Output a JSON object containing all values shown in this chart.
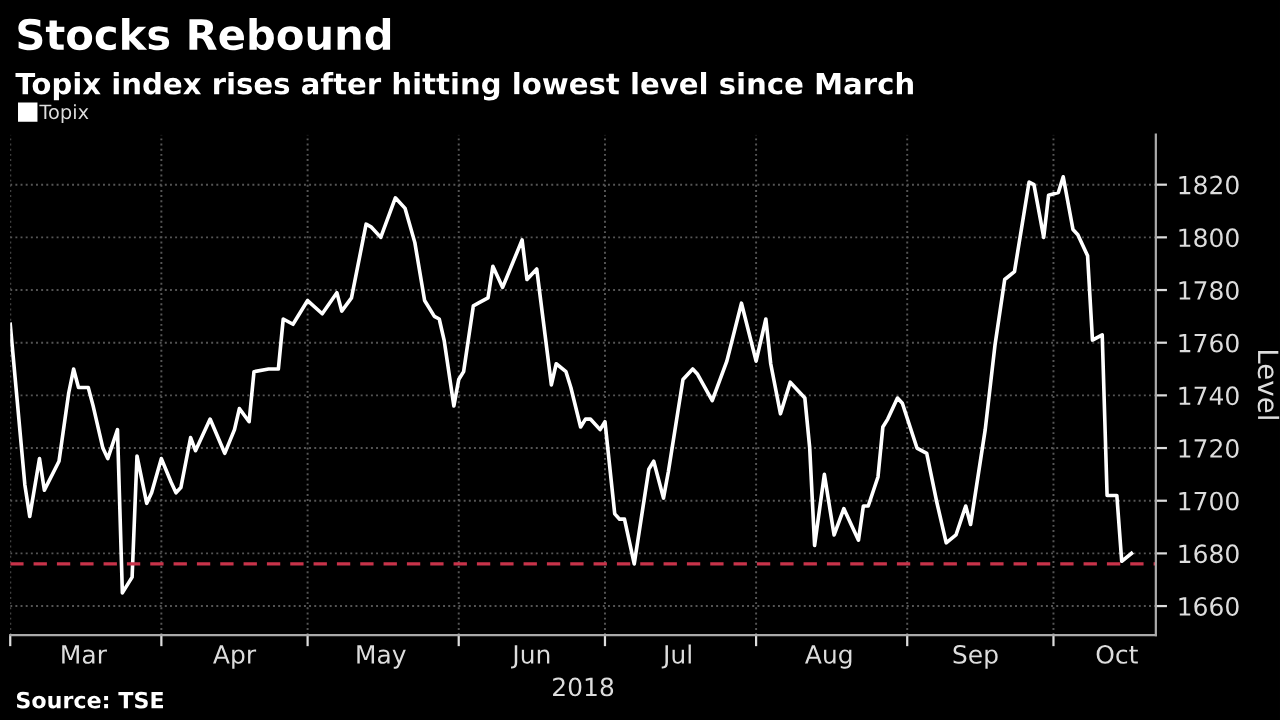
{
  "chart_data": {
    "type": "line",
    "title": "Stocks Rebound",
    "subtitle": "Topix index rises after hitting lowest level since March",
    "xlabel": "2018",
    "ylabel": "Level",
    "annotations": [
      "Source: TSE"
    ],
    "x": [
      "2018-03-01",
      "2018-03-04",
      "2018-03-05",
      "2018-03-07",
      "2018-03-08",
      "2018-03-11",
      "2018-03-13",
      "2018-03-14",
      "2018-03-15",
      "2018-03-17",
      "2018-03-18",
      "2018-03-20",
      "2018-03-21",
      "2018-03-23",
      "2018-03-24",
      "2018-03-26",
      "2018-03-27",
      "2018-03-29",
      "2018-03-30",
      "2018-04-01",
      "2018-04-03",
      "2018-04-04",
      "2018-04-05",
      "2018-04-07",
      "2018-04-08",
      "2018-04-11",
      "2018-04-14",
      "2018-04-16",
      "2018-04-17",
      "2018-04-19",
      "2018-04-20",
      "2018-04-23",
      "2018-04-25",
      "2018-04-26",
      "2018-04-28",
      "2018-05-01",
      "2018-05-04",
      "2018-05-07",
      "2018-05-08",
      "2018-05-10",
      "2018-05-13",
      "2018-05-14",
      "2018-05-16",
      "2018-05-19",
      "2018-05-21",
      "2018-05-23",
      "2018-05-25",
      "2018-05-27",
      "2018-05-28",
      "2018-05-29",
      "2018-05-31",
      "2018-06-01",
      "2018-06-02",
      "2018-06-04",
      "2018-06-05",
      "2018-06-07",
      "2018-06-08",
      "2018-06-10",
      "2018-06-14",
      "2018-06-15",
      "2018-06-17",
      "2018-06-20",
      "2018-06-21",
      "2018-06-23",
      "2018-06-24",
      "2018-06-26",
      "2018-06-27",
      "2018-06-28",
      "2018-06-30",
      "2018-07-01",
      "2018-07-03",
      "2018-07-04",
      "2018-07-05",
      "2018-07-07",
      "2018-07-10",
      "2018-07-11",
      "2018-07-13",
      "2018-07-14",
      "2018-07-17",
      "2018-07-19",
      "2018-07-20",
      "2018-07-23",
      "2018-07-26",
      "2018-07-29",
      "2018-08-01",
      "2018-08-03",
      "2018-08-04",
      "2018-08-06",
      "2018-08-08",
      "2018-08-09",
      "2018-08-11",
      "2018-08-12",
      "2018-08-13",
      "2018-08-15",
      "2018-08-17",
      "2018-08-19",
      "2018-08-22",
      "2018-08-23",
      "2018-08-24",
      "2018-08-26",
      "2018-08-27",
      "2018-08-28",
      "2018-08-30",
      "2018-08-31",
      "2018-09-03",
      "2018-09-05",
      "2018-09-07",
      "2018-09-09",
      "2018-09-11",
      "2018-09-13",
      "2018-09-14",
      "2018-09-17",
      "2018-09-19",
      "2018-09-21",
      "2018-09-23",
      "2018-09-26",
      "2018-09-27",
      "2018-09-29",
      "2018-09-30",
      "2018-10-02",
      "2018-10-03",
      "2018-10-05",
      "2018-10-06",
      "2018-10-08",
      "2018-10-09",
      "2018-10-11",
      "2018-10-12",
      "2018-10-14",
      "2018-10-15",
      "2018-10-17"
    ],
    "series": [
      {
        "name": "Topix",
        "color": "#ffffff",
        "values": [
          1767,
          1706,
          1694,
          1716,
          1704,
          1715,
          1741,
          1750,
          1743,
          1743,
          1736,
          1720,
          1716,
          1727,
          1665,
          1671,
          1717,
          1699,
          1703,
          1716,
          1707,
          1703,
          1705,
          1724,
          1719,
          1731,
          1718,
          1727,
          1735,
          1730,
          1749,
          1750,
          1750,
          1769,
          1767,
          1776,
          1771,
          1779,
          1772,
          1777,
          1805,
          1804,
          1800,
          1815,
          1811,
          1798,
          1776,
          1770,
          1769,
          1761,
          1736,
          1746,
          1749,
          1774,
          1775,
          1777,
          1789,
          1781,
          1799,
          1784,
          1788,
          1744,
          1752,
          1749,
          1743,
          1728,
          1731,
          1731,
          1727,
          1730,
          1695,
          1693,
          1693,
          1676,
          1712,
          1715,
          1701,
          1711,
          1746,
          1750,
          1748,
          1738,
          1753,
          1775,
          1753,
          1769,
          1752,
          1733,
          1745,
          1743,
          1739,
          1720,
          1683,
          1710,
          1687,
          1697,
          1685,
          1698,
          1698,
          1709,
          1728,
          1731,
          1739,
          1737,
          1720,
          1718,
          1700,
          1684,
          1687,
          1698,
          1691,
          1727,
          1759,
          1784,
          1787,
          1821,
          1820,
          1800,
          1816,
          1817,
          1823,
          1803,
          1801,
          1793,
          1761,
          1763,
          1702,
          1702,
          1677,
          1680
        ]
      }
    ],
    "xlim": [
      "2018-03-01",
      "2018-10-22"
    ],
    "xticks": [
      {
        "value": "2018-03-01",
        "label": null
      },
      {
        "value": "2018-04-01",
        "label": null
      },
      {
        "value": "2018-05-01",
        "label": null
      },
      {
        "value": "2018-06-01",
        "label": null
      },
      {
        "value": "2018-07-01",
        "label": null
      },
      {
        "value": "2018-08-01",
        "label": null
      },
      {
        "value": "2018-09-01",
        "label": null
      },
      {
        "value": "2018-10-01",
        "label": null
      },
      {
        "value": "2018-03-16",
        "label": "Mar"
      },
      {
        "value": "2018-04-16",
        "label": "Apr"
      },
      {
        "value": "2018-05-16",
        "label": "May"
      },
      {
        "value": "2018-06-16",
        "label": "Jun"
      },
      {
        "value": "2018-07-16",
        "label": "Jul"
      },
      {
        "value": "2018-08-16",
        "label": "Aug"
      },
      {
        "value": "2018-09-15",
        "label": "Sep"
      },
      {
        "value": "2018-10-14",
        "label": "Oct"
      }
    ],
    "ylim": [
      1649,
      1839
    ],
    "yticks": [
      1660,
      1680,
      1700,
      1720,
      1740,
      1760,
      1780,
      1800,
      1820
    ],
    "ref_lines": [
      {
        "axis": "y",
        "value": 1676,
        "color": "#c8334a",
        "line_style": "dashed"
      }
    ],
    "grid": true,
    "legend": "top left",
    "marker": "none",
    "line_style": "solid"
  }
}
